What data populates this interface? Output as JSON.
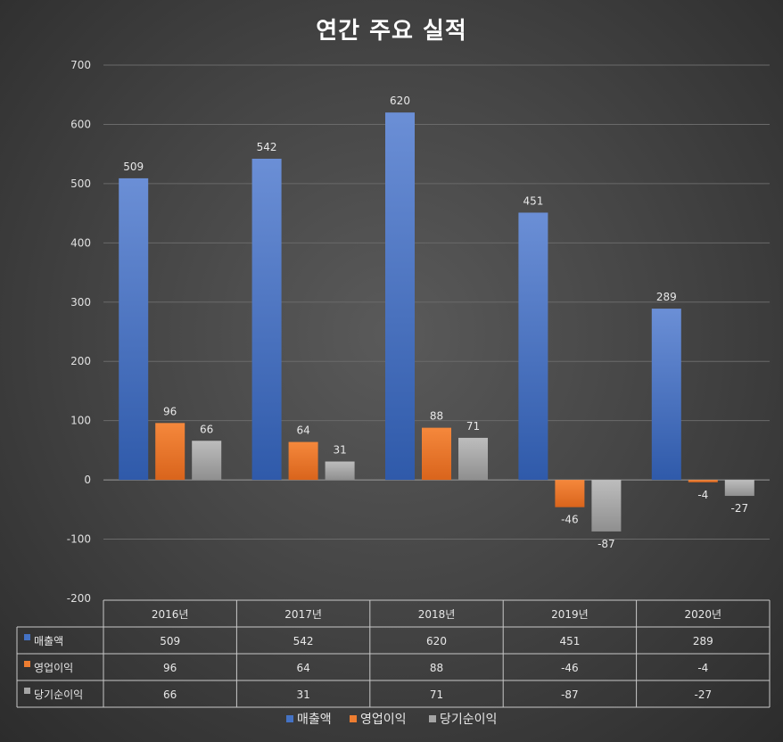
{
  "chart_data": {
    "type": "bar",
    "title": "연간 주요 실적",
    "categories": [
      "2016년",
      "2017년",
      "2018년",
      "2019년",
      "2020년"
    ],
    "series": [
      {
        "name": "매출액",
        "color": "#4472c4",
        "values": [
          509,
          542,
          620,
          451,
          289
        ]
      },
      {
        "name": "영업이익",
        "color": "#ed7d31",
        "values": [
          96,
          64,
          88,
          -46,
          -4
        ]
      },
      {
        "name": "당기순이익",
        "color": "#a5a5a5",
        "values": [
          66,
          31,
          71,
          -87,
          -27
        ]
      }
    ],
    "ylim": [
      -200,
      700
    ],
    "yticks": [
      700,
      600,
      500,
      400,
      300,
      200,
      100,
      0,
      -100,
      -200
    ],
    "grid": true,
    "data_table": true,
    "legend_position": "bottom"
  }
}
